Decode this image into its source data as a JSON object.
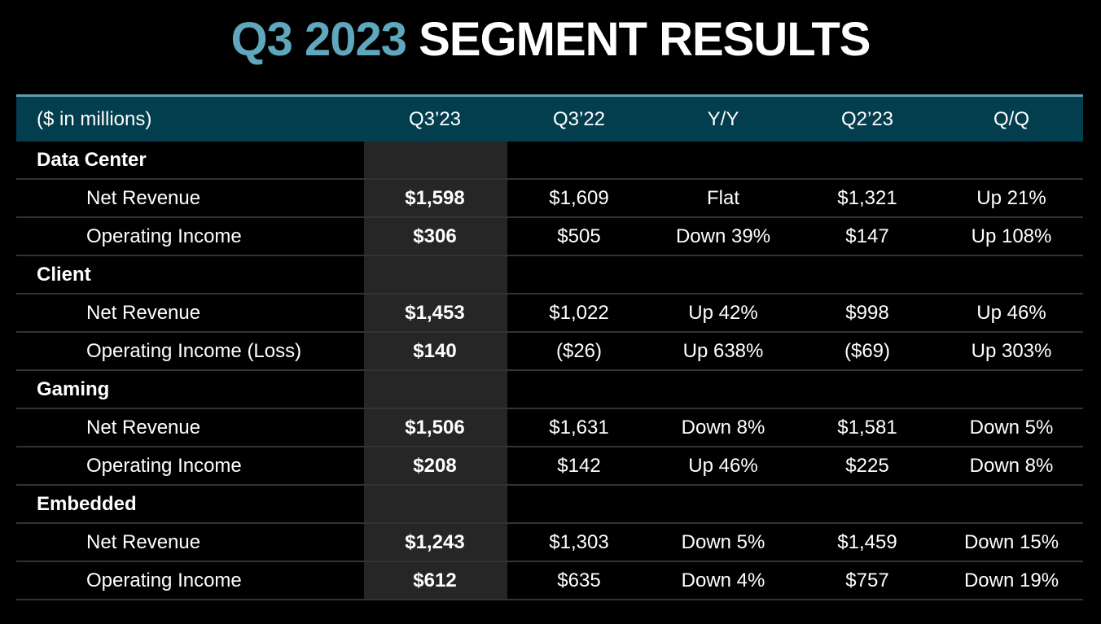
{
  "title": {
    "accent": "Q3 2023",
    "rest": "SEGMENT RESULTS"
  },
  "colors": {
    "accent": "#5fa7bd",
    "header_bg": "#033e4e",
    "header_border": "#5e9fb3",
    "highlight_col": "#262626"
  },
  "table": {
    "headers": [
      "($ in millions)",
      "Q3’23",
      "Q3’22",
      "Y/Y",
      "Q2’23",
      "Q/Q"
    ],
    "rows": [
      {
        "type": "segment",
        "label": "Data Center",
        "cells": [
          "",
          "",
          "",
          "",
          ""
        ]
      },
      {
        "type": "metric",
        "label": "Net Revenue",
        "cells": [
          "$1,598",
          "$1,609",
          "Flat",
          "$1,321",
          "Up 21%"
        ]
      },
      {
        "type": "metric",
        "label": "Operating Income",
        "cells": [
          "$306",
          "$505",
          "Down 39%",
          "$147",
          "Up 108%"
        ]
      },
      {
        "type": "segment",
        "label": "Client",
        "cells": [
          "",
          "",
          "",
          "",
          ""
        ]
      },
      {
        "type": "metric",
        "label": "Net Revenue",
        "cells": [
          "$1,453",
          "$1,022",
          "Up 42%",
          "$998",
          "Up 46%"
        ]
      },
      {
        "type": "metric",
        "label": "Operating Income (Loss)",
        "cells": [
          "$140",
          "($26)",
          "Up 638%",
          "($69)",
          "Up 303%"
        ]
      },
      {
        "type": "segment",
        "label": "Gaming",
        "cells": [
          "",
          "",
          "",
          "",
          ""
        ]
      },
      {
        "type": "metric",
        "label": "Net Revenue",
        "cells": [
          "$1,506",
          "$1,631",
          "Down 8%",
          "$1,581",
          "Down 5%"
        ]
      },
      {
        "type": "metric",
        "label": "Operating Income",
        "cells": [
          "$208",
          "$142",
          "Up 46%",
          "$225",
          "Down 8%"
        ]
      },
      {
        "type": "segment",
        "label": "Embedded",
        "cells": [
          "",
          "",
          "",
          "",
          ""
        ]
      },
      {
        "type": "metric",
        "label": "Net Revenue",
        "cells": [
          "$1,243",
          "$1,303",
          "Down 5%",
          "$1,459",
          "Down 15%"
        ]
      },
      {
        "type": "metric",
        "label": "Operating Income",
        "cells": [
          "$612",
          "$635",
          "Down 4%",
          "$757",
          "Down 19%"
        ]
      }
    ]
  }
}
